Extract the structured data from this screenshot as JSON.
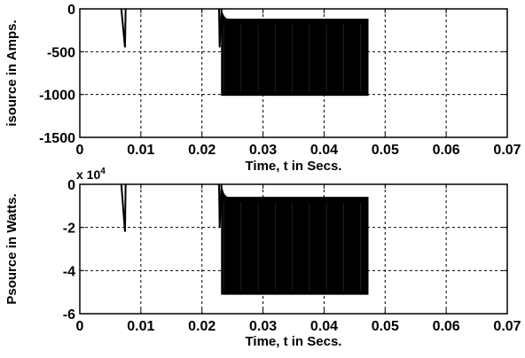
{
  "chart_data": [
    {
      "type": "line",
      "title": "",
      "xlabel": "Time, t in Secs.",
      "ylabel": "isource in Amps.",
      "xlim": [
        0,
        0.07
      ],
      "ylim": [
        -1500,
        0
      ],
      "xticks": [
        0,
        0.01,
        0.02,
        0.03,
        0.04,
        0.05,
        0.06,
        0.07
      ],
      "xtick_labels": [
        "0",
        "0.01",
        "0.02",
        "0.03",
        "0.04",
        "0.05",
        "0.06",
        "0.07"
      ],
      "yticks": [
        -1500,
        -1000,
        -500,
        0
      ],
      "ytick_labels": [
        "-1500",
        "-1000",
        "-500",
        "0"
      ],
      "y_exponent_label": "",
      "grid": true,
      "grid_style": "dotted",
      "series": [
        {
          "color": "#000000",
          "segments": [
            {
              "type": "spike",
              "x_start": 0.0068,
              "x_end": 0.0075,
              "x_peak": 0.0074,
              "y_peak": -450
            },
            {
              "type": "spike",
              "x_start": 0.0228,
              "x_end": 0.0232,
              "x_peak": 0.0229,
              "y_peak": -450
            },
            {
              "type": "oscillation",
              "x_start": 0.0232,
              "x_end": 0.0472,
              "y_upper": -120,
              "y_upper_initial": 0,
              "y_lower": -1010
            }
          ]
        }
      ]
    },
    {
      "type": "line",
      "title": "",
      "xlabel": "Time, t in Secs.",
      "ylabel": "Psource in Watts.",
      "xlim": [
        0,
        0.07
      ],
      "ylim": [
        -6,
        0
      ],
      "xticks": [
        0,
        0.01,
        0.02,
        0.03,
        0.04,
        0.05,
        0.06,
        0.07
      ],
      "xtick_labels": [
        "0",
        "0.01",
        "0.02",
        "0.03",
        "0.04",
        "0.05",
        "0.06",
        "0.07"
      ],
      "yticks": [
        -6,
        -4,
        -2,
        0
      ],
      "ytick_labels": [
        "-6",
        "-4",
        "-2",
        "0"
      ],
      "y_exponent_label": "x 10",
      "y_exponent_power": "4",
      "grid": true,
      "grid_style": "dotted",
      "series": [
        {
          "color": "#000000",
          "segments": [
            {
              "type": "spike",
              "x_start": 0.0068,
              "x_end": 0.0075,
              "x_peak": 0.0074,
              "y_peak": -2.2
            },
            {
              "type": "spike",
              "x_start": 0.0228,
              "x_end": 0.0232,
              "x_peak": 0.0229,
              "y_peak": -2.0
            },
            {
              "type": "oscillation",
              "x_start": 0.0232,
              "x_end": 0.0472,
              "y_upper": -0.6,
              "y_upper_initial": 0,
              "y_lower": -5.1
            }
          ]
        }
      ]
    }
  ]
}
